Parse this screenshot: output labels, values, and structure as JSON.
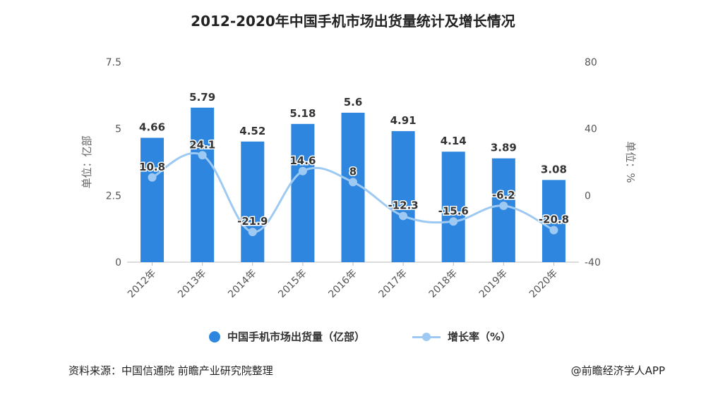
{
  "chart_data": {
    "type": "bar",
    "title": "2012-2020年中国手机市场出货量统计及增长情况",
    "categories": [
      "2012年",
      "2013年",
      "2014年",
      "2015年",
      "2016年",
      "2017年",
      "2018年",
      "2019年",
      "2020年"
    ],
    "series": [
      {
        "name": "中国手机市场出货量（亿部）",
        "type": "bar",
        "axis": "left",
        "color": "#2e86de",
        "values": [
          4.66,
          5.79,
          4.52,
          5.18,
          5.6,
          4.91,
          4.14,
          3.89,
          3.08
        ],
        "labels": [
          "4.66",
          "5.79",
          "4.52",
          "5.18",
          "5.6",
          "4.91",
          "4.14",
          "3.89",
          "3.08"
        ]
      },
      {
        "name": "增长率（%）",
        "type": "line",
        "axis": "right",
        "color": "#9ec9f2",
        "values": [
          10.8,
          24.1,
          -21.9,
          14.6,
          8,
          -12.3,
          -15.6,
          -6.2,
          -20.8
        ],
        "labels": [
          "10.8",
          "24.1",
          "-21.9",
          "14.6",
          "8",
          "-12.3",
          "-15.6",
          "-6.2",
          "-20.8"
        ]
      }
    ],
    "left_axis": {
      "label": "单位：亿部",
      "ylim": [
        0,
        7.5
      ],
      "ticks": [
        "0",
        "2.5",
        "5",
        "7.5"
      ],
      "tick_values": [
        0,
        2.5,
        5,
        7.5
      ]
    },
    "right_axis": {
      "label": "单位：%",
      "ylim": [
        -40,
        80
      ],
      "ticks": [
        "-40",
        "0",
        "40",
        "80"
      ],
      "tick_values": [
        -40,
        0,
        40,
        80
      ]
    },
    "legend": {
      "position": "bottom",
      "entries": [
        "中国手机市场出货量（亿部）",
        "增长率（%）"
      ]
    },
    "grid": false
  },
  "footer": {
    "source": "资料来源：中国信通院 前瞻产业研究院整理",
    "credit": "@前瞻经济学人APP"
  }
}
